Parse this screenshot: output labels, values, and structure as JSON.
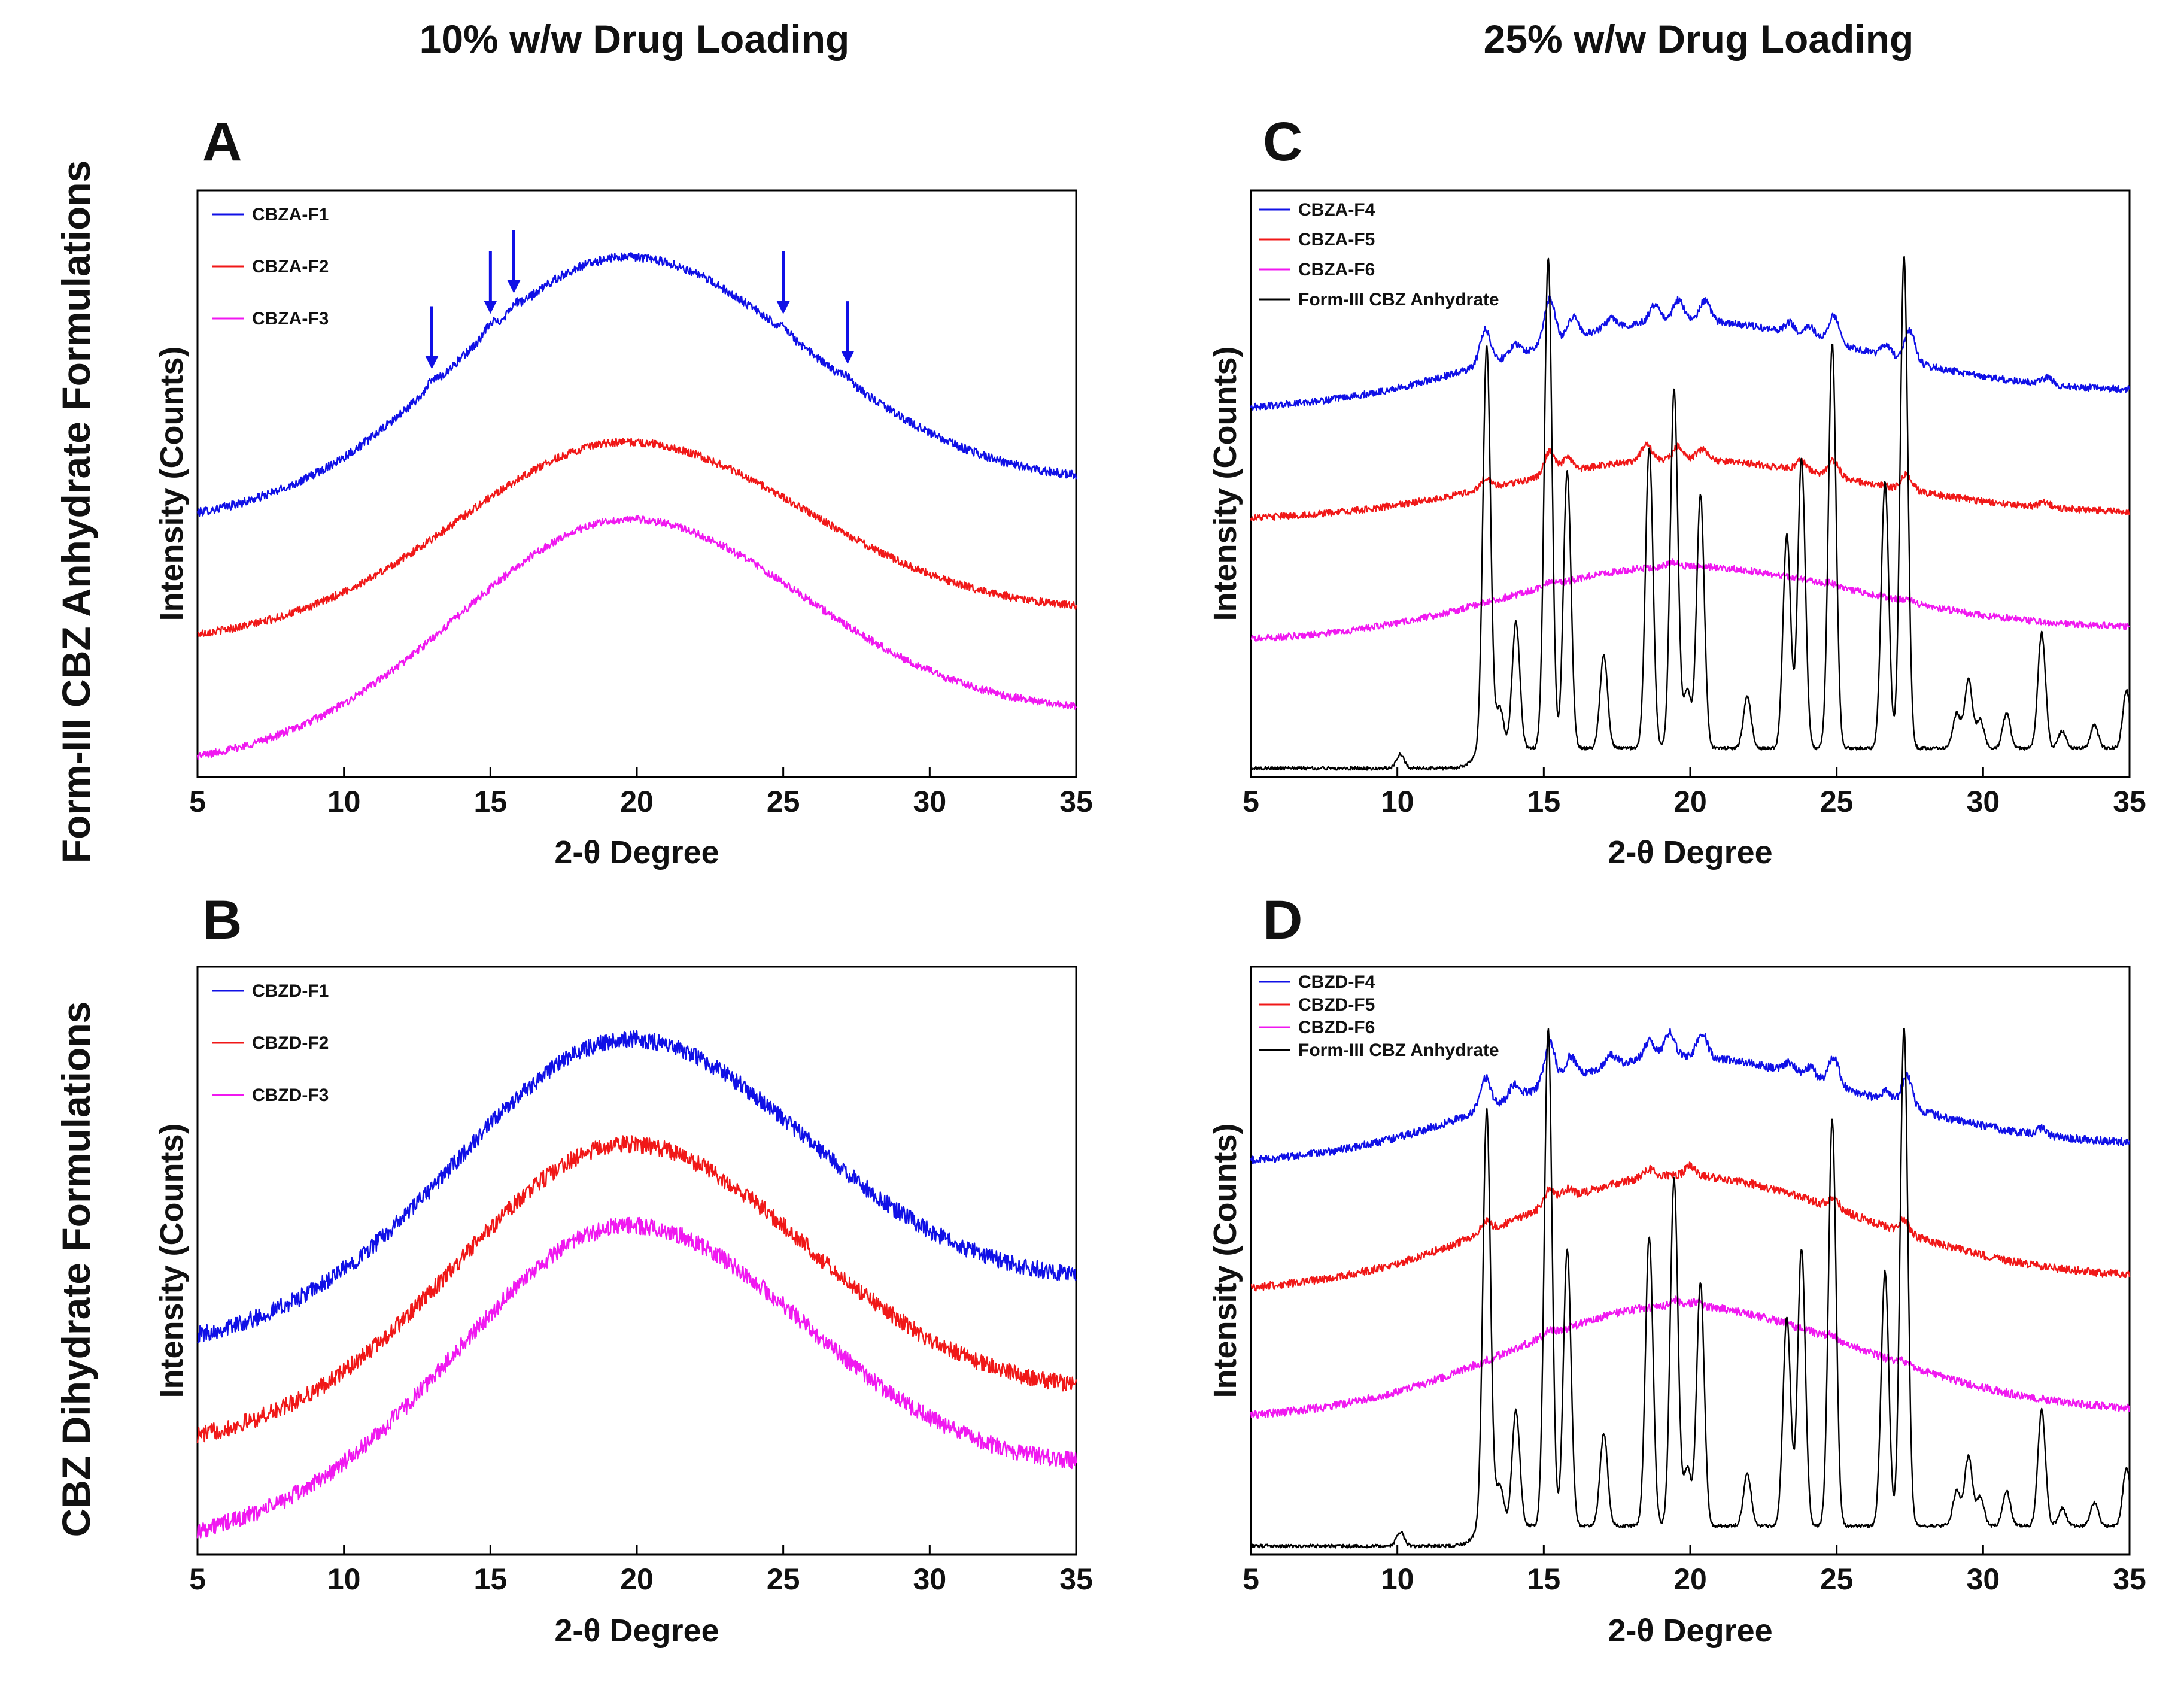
{
  "figure": {
    "column_titles": [
      "10% w/w Drug Loading",
      "25% w/w Drug Loading"
    ],
    "row_titles": [
      "Form-III CBZ Anhydrate Formulations",
      "CBZ Dihydrate Formulations"
    ]
  },
  "colors": {
    "blue": "#1010e6",
    "red": "#f01818",
    "magenta": "#f018f0",
    "black": "#000000"
  },
  "chart_data": [
    {
      "panel": "A",
      "type": "line",
      "xlabel": "2-θ Degree",
      "ylabel": "Intensity (Counts)",
      "xlim": [
        5,
        35
      ],
      "xticks": [
        5,
        10,
        15,
        20,
        25,
        30,
        35
      ],
      "y_scale": "arbitrary units, stacked offsets, no tick labels",
      "legend_position": "top-left",
      "annotations": [
        {
          "type": "arrow",
          "x": 13
        },
        {
          "type": "arrow",
          "x": 15
        },
        {
          "type": "arrow",
          "x": 15.8
        },
        {
          "type": "arrow",
          "x": 25
        },
        {
          "type": "arrow",
          "x": 27.2
        }
      ],
      "series": [
        {
          "name": "CBZA-F1",
          "color": "blue",
          "offset": 0.55,
          "amp": 0.56,
          "end": 0.08,
          "noise": 0.01,
          "baseline": 0,
          "peak_scale": 0.02,
          "peaks": [
            [
              13,
              0.6
            ],
            [
              15,
              0.8
            ],
            [
              15.8,
              0.7
            ],
            [
              25,
              0.6
            ],
            [
              27.2,
              0.5
            ]
          ]
        },
        {
          "name": "CBZA-F2",
          "color": "red",
          "offset": 0.28,
          "amp": 0.42,
          "end": 0.06,
          "noise": 0.009,
          "baseline": 0,
          "peak_scale": 0,
          "peaks": []
        },
        {
          "name": "CBZA-F3",
          "color": "magenta",
          "offset": 0.0,
          "amp": 0.5,
          "end": 0.11,
          "noise": 0.009,
          "baseline": 0,
          "peak_scale": 0,
          "peaks": []
        }
      ]
    },
    {
      "panel": "B",
      "type": "line",
      "xlabel": "2-θ Degree",
      "ylabel": "Intensity (Counts)",
      "xlim": [
        5,
        35
      ],
      "xticks": [
        5,
        10,
        15,
        20,
        25,
        30,
        35
      ],
      "y_scale": "arbitrary units, stacked offsets, no tick labels",
      "legend_position": "top-left",
      "annotations": [],
      "series": [
        {
          "name": "CBZD-F1",
          "color": "blue",
          "offset": 0.41,
          "amp": 0.58,
          "end": 0.12,
          "noise": 0.018,
          "baseline": 0,
          "peak_scale": 0,
          "peaks": []
        },
        {
          "name": "CBZD-F2",
          "color": "red",
          "offset": 0.2,
          "amp": 0.58,
          "end": 0.1,
          "noise": 0.018,
          "baseline": 0,
          "peak_scale": 0,
          "peaks": []
        },
        {
          "name": "CBZD-F3",
          "color": "magenta",
          "offset": 0.0,
          "amp": 0.59,
          "end": 0.14,
          "noise": 0.018,
          "baseline": 0,
          "peak_scale": 0,
          "peaks": []
        }
      ]
    },
    {
      "panel": "C",
      "type": "line",
      "xlabel": "2-θ Degree",
      "ylabel": "Intensity (Counts)",
      "xlim": [
        5,
        35
      ],
      "xticks": [
        5,
        10,
        15,
        20,
        25,
        30,
        35
      ],
      "y_scale": "arbitrary units, stacked offsets, no tick labels",
      "legend_position": "top-left",
      "annotations": [],
      "series": [
        {
          "name": "CBZA-F4",
          "color": "blue",
          "offset": 0.62,
          "amp": 0.14,
          "end": 0.03,
          "noise": 0.006,
          "baseline": 0,
          "peak_scale": 0.06,
          "peaks": [
            [
              13,
              1.0
            ],
            [
              14,
              0.3
            ],
            [
              15.2,
              1.3
            ],
            [
              16,
              0.6
            ],
            [
              17.3,
              0.3
            ],
            [
              18.8,
              0.5
            ],
            [
              19.6,
              0.6
            ],
            [
              20.5,
              0.6
            ],
            [
              23.4,
              0.3
            ],
            [
              24.1,
              0.3
            ],
            [
              24.9,
              0.8
            ],
            [
              26.7,
              0.3
            ],
            [
              27.5,
              0.9
            ],
            [
              32.2,
              0.2
            ]
          ]
        },
        {
          "name": "CBZA-F5",
          "color": "red",
          "offset": 0.43,
          "amp": 0.1,
          "end": 0.01,
          "noise": 0.006,
          "baseline": 0,
          "peak_scale": 0.045,
          "peaks": [
            [
              13,
              0.4
            ],
            [
              15.2,
              0.9
            ],
            [
              15.8,
              0.5
            ],
            [
              18.5,
              0.6
            ],
            [
              19.6,
              0.5
            ],
            [
              20.4,
              0.4
            ],
            [
              23.8,
              0.4
            ],
            [
              24.9,
              0.6
            ],
            [
              27.4,
              0.6
            ],
            [
              32.1,
              0.2
            ]
          ]
        },
        {
          "name": "CBZA-F6",
          "color": "magenta",
          "offset": 0.22,
          "amp": 0.12,
          "end": 0.02,
          "noise": 0.006,
          "baseline": 0,
          "peak_scale": 0.015,
          "peaks": [
            [
              15.2,
              0.4
            ],
            [
              19.4,
              0.5
            ],
            [
              24.8,
              0.3
            ],
            [
              27.4,
              0.3
            ]
          ]
        },
        {
          "name": "Form-III CBZ Anhydrate",
          "color": "black",
          "offset": 0.0,
          "amp": 0,
          "end": 0,
          "noise": 0.003,
          "baseline": 0.035,
          "peak_scale": 1,
          "peaks": [
            [
              10.1,
              0.025
            ],
            [
              13.05,
              0.7
            ],
            [
              13.5,
              0.07
            ],
            [
              14.05,
              0.22
            ],
            [
              15.15,
              0.85
            ],
            [
              15.8,
              0.48
            ],
            [
              17.05,
              0.16
            ],
            [
              18.6,
              0.52
            ],
            [
              19.45,
              0.62
            ],
            [
              19.9,
              0.1
            ],
            [
              20.35,
              0.44
            ],
            [
              21.95,
              0.09
            ],
            [
              23.3,
              0.37
            ],
            [
              23.8,
              0.5
            ],
            [
              24.85,
              0.7
            ],
            [
              26.65,
              0.46
            ],
            [
              27.3,
              0.85
            ],
            [
              29.1,
              0.06
            ],
            [
              29.5,
              0.12
            ],
            [
              29.9,
              0.05
            ],
            [
              30.8,
              0.06
            ],
            [
              32.0,
              0.2
            ],
            [
              32.7,
              0.03
            ],
            [
              33.8,
              0.04
            ],
            [
              34.9,
              0.1
            ]
          ]
        }
      ]
    },
    {
      "panel": "D",
      "type": "line",
      "xlabel": "2-θ Degree",
      "ylabel": "Intensity (Counts)",
      "xlim": [
        5,
        35
      ],
      "xticks": [
        5,
        10,
        15,
        20,
        25,
        30,
        35
      ],
      "y_scale": "arbitrary units, stacked offsets, no tick labels",
      "legend_position": "top-left",
      "annotations": [],
      "series": [
        {
          "name": "CBZD-F4",
          "color": "blue",
          "offset": 0.66,
          "amp": 0.17,
          "end": 0.03,
          "noise": 0.007,
          "baseline": 0,
          "peak_scale": 0.06,
          "peaks": [
            [
              13,
              0.9
            ],
            [
              14,
              0.4
            ],
            [
              15.2,
              1.2
            ],
            [
              15.9,
              0.6
            ],
            [
              17.3,
              0.3
            ],
            [
              18.6,
              0.5
            ],
            [
              19.3,
              0.7
            ],
            [
              20.4,
              0.7
            ],
            [
              23.4,
              0.3
            ],
            [
              24.1,
              0.3
            ],
            [
              24.9,
              0.8
            ],
            [
              26.7,
              0.3
            ],
            [
              27.4,
              0.9
            ],
            [
              32,
              0.2
            ]
          ]
        },
        {
          "name": "CBZD-F5",
          "color": "red",
          "offset": 0.44,
          "amp": 0.19,
          "end": 0.02,
          "noise": 0.007,
          "baseline": 0,
          "peak_scale": 0.035,
          "peaks": [
            [
              13,
              0.5
            ],
            [
              15.2,
              0.8
            ],
            [
              15.8,
              0.5
            ],
            [
              18.6,
              0.4
            ],
            [
              20,
              0.5
            ],
            [
              24.9,
              0.5
            ],
            [
              27.3,
              0.6
            ]
          ]
        },
        {
          "name": "CBZD-F6",
          "color": "magenta",
          "offset": 0.22,
          "amp": 0.19,
          "end": 0.01,
          "noise": 0.007,
          "baseline": 0,
          "peak_scale": 0.02,
          "peaks": [
            [
              15.2,
              0.4
            ],
            [
              19.5,
              0.5
            ],
            [
              20.2,
              0.4
            ],
            [
              24.8,
              0.3
            ],
            [
              27.3,
              0.3
            ]
          ]
        },
        {
          "name": "Form-III CBZ Anhydrate",
          "color": "black",
          "offset": 0.0,
          "amp": 0,
          "end": 0,
          "noise": 0.003,
          "baseline": 0.035,
          "peak_scale": 1,
          "peaks": [
            [
              10.1,
              0.025
            ],
            [
              13.05,
              0.72
            ],
            [
              13.5,
              0.07
            ],
            [
              14.05,
              0.2
            ],
            [
              15.15,
              0.86
            ],
            [
              15.8,
              0.48
            ],
            [
              17.05,
              0.16
            ],
            [
              18.6,
              0.5
            ],
            [
              19.45,
              0.6
            ],
            [
              19.9,
              0.1
            ],
            [
              20.35,
              0.42
            ],
            [
              21.95,
              0.09
            ],
            [
              23.3,
              0.36
            ],
            [
              23.8,
              0.48
            ],
            [
              24.85,
              0.7
            ],
            [
              26.65,
              0.44
            ],
            [
              27.3,
              0.86
            ],
            [
              29.1,
              0.06
            ],
            [
              29.5,
              0.12
            ],
            [
              29.9,
              0.05
            ],
            [
              30.8,
              0.06
            ],
            [
              32.0,
              0.2
            ],
            [
              32.7,
              0.03
            ],
            [
              33.8,
              0.04
            ],
            [
              34.9,
              0.1
            ]
          ]
        }
      ]
    }
  ]
}
